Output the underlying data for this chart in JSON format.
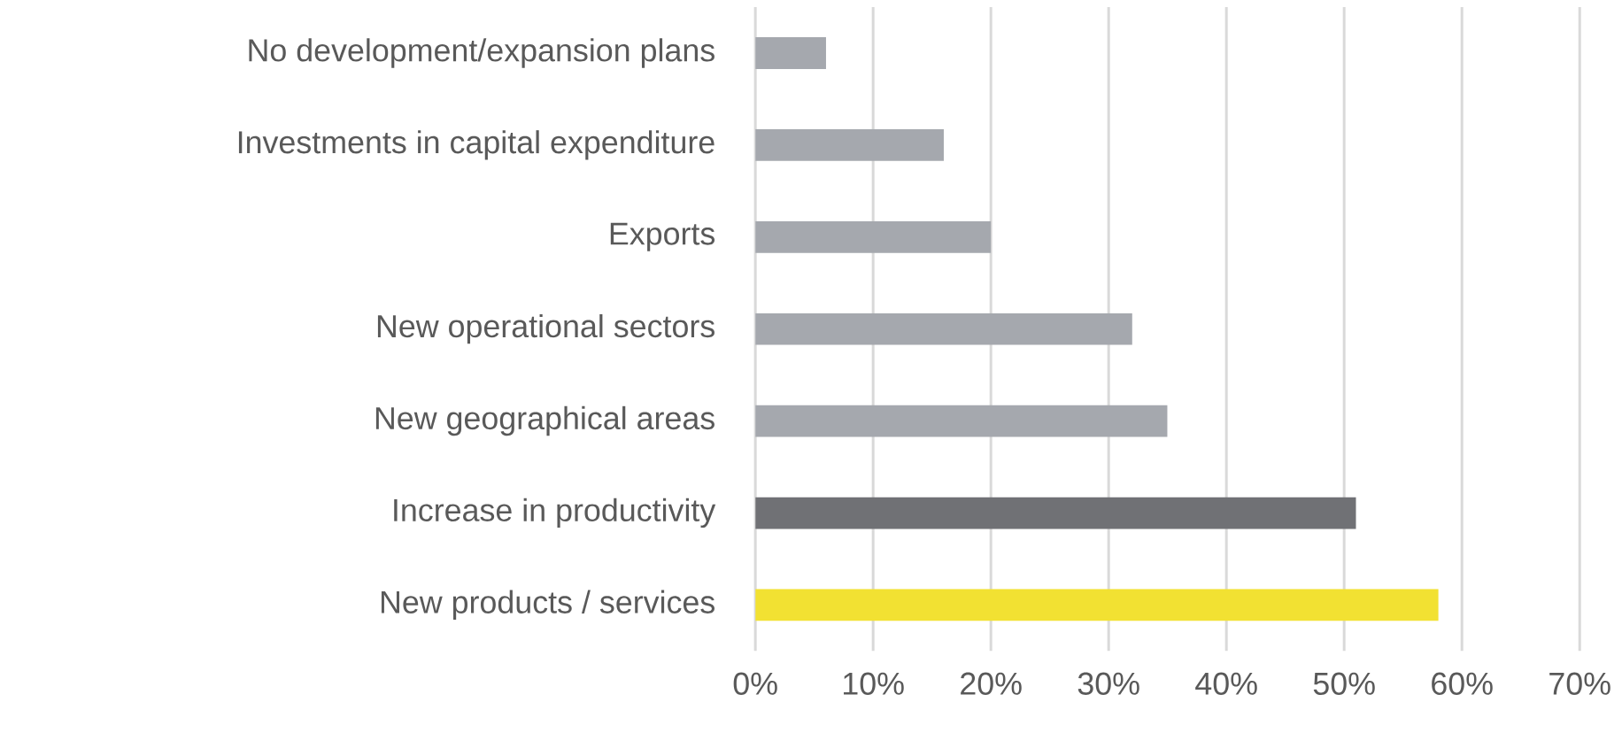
{
  "chart_data": {
    "type": "bar",
    "orientation": "horizontal",
    "categories": [
      "No development/expansion plans",
      "Investments in capital expenditure",
      "Exports",
      "New operational sectors",
      "New geographical areas",
      "Increase in productivity",
      "New products / services"
    ],
    "values": [
      6,
      16,
      20,
      32,
      35,
      51,
      58
    ],
    "colors": [
      "#a5a8ae",
      "#a5a8ae",
      "#a5a8ae",
      "#a5a8ae",
      "#a5a8ae",
      "#707175",
      "#f2e132"
    ],
    "xlim": [
      0,
      70
    ],
    "xticks": [
      {
        "value": 0,
        "label": "0%"
      },
      {
        "value": 10,
        "label": "10%"
      },
      {
        "value": 20,
        "label": "20%"
      },
      {
        "value": 30,
        "label": "30%"
      },
      {
        "value": 40,
        "label": "40%"
      },
      {
        "value": 50,
        "label": "50%"
      },
      {
        "value": 60,
        "label": "60%"
      },
      {
        "value": 70,
        "label": "70%"
      }
    ],
    "grid": "x"
  }
}
